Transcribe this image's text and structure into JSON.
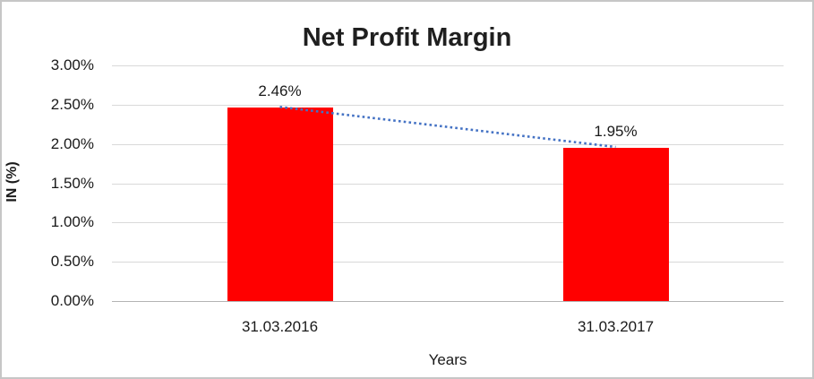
{
  "chart_data": {
    "type": "bar",
    "title": "Net Profit Margin",
    "categories": [
      "31.03.2016",
      "31.03.2017"
    ],
    "values": [
      2.46,
      1.95
    ],
    "data_labels": [
      "2.46%",
      "1.95%"
    ],
    "xlabel": "Years",
    "ylabel": "IN (%)",
    "ylim": [
      0,
      3
    ],
    "ytick_step": 0.5,
    "ytick_labels": [
      "0.00%",
      "0.50%",
      "1.00%",
      "1.50%",
      "2.00%",
      "2.50%",
      "3.00%"
    ],
    "grid": true,
    "legend": false,
    "trendline": {
      "style": "dotted",
      "connects": [
        "31.03.2016",
        "31.03.2017"
      ]
    },
    "colors": {
      "bar": "#ff0000",
      "trendline": "#4472c4",
      "gridline": "#d9d9d9",
      "baseline": "#b3b3b3",
      "text": "#1a1a1a"
    }
  }
}
